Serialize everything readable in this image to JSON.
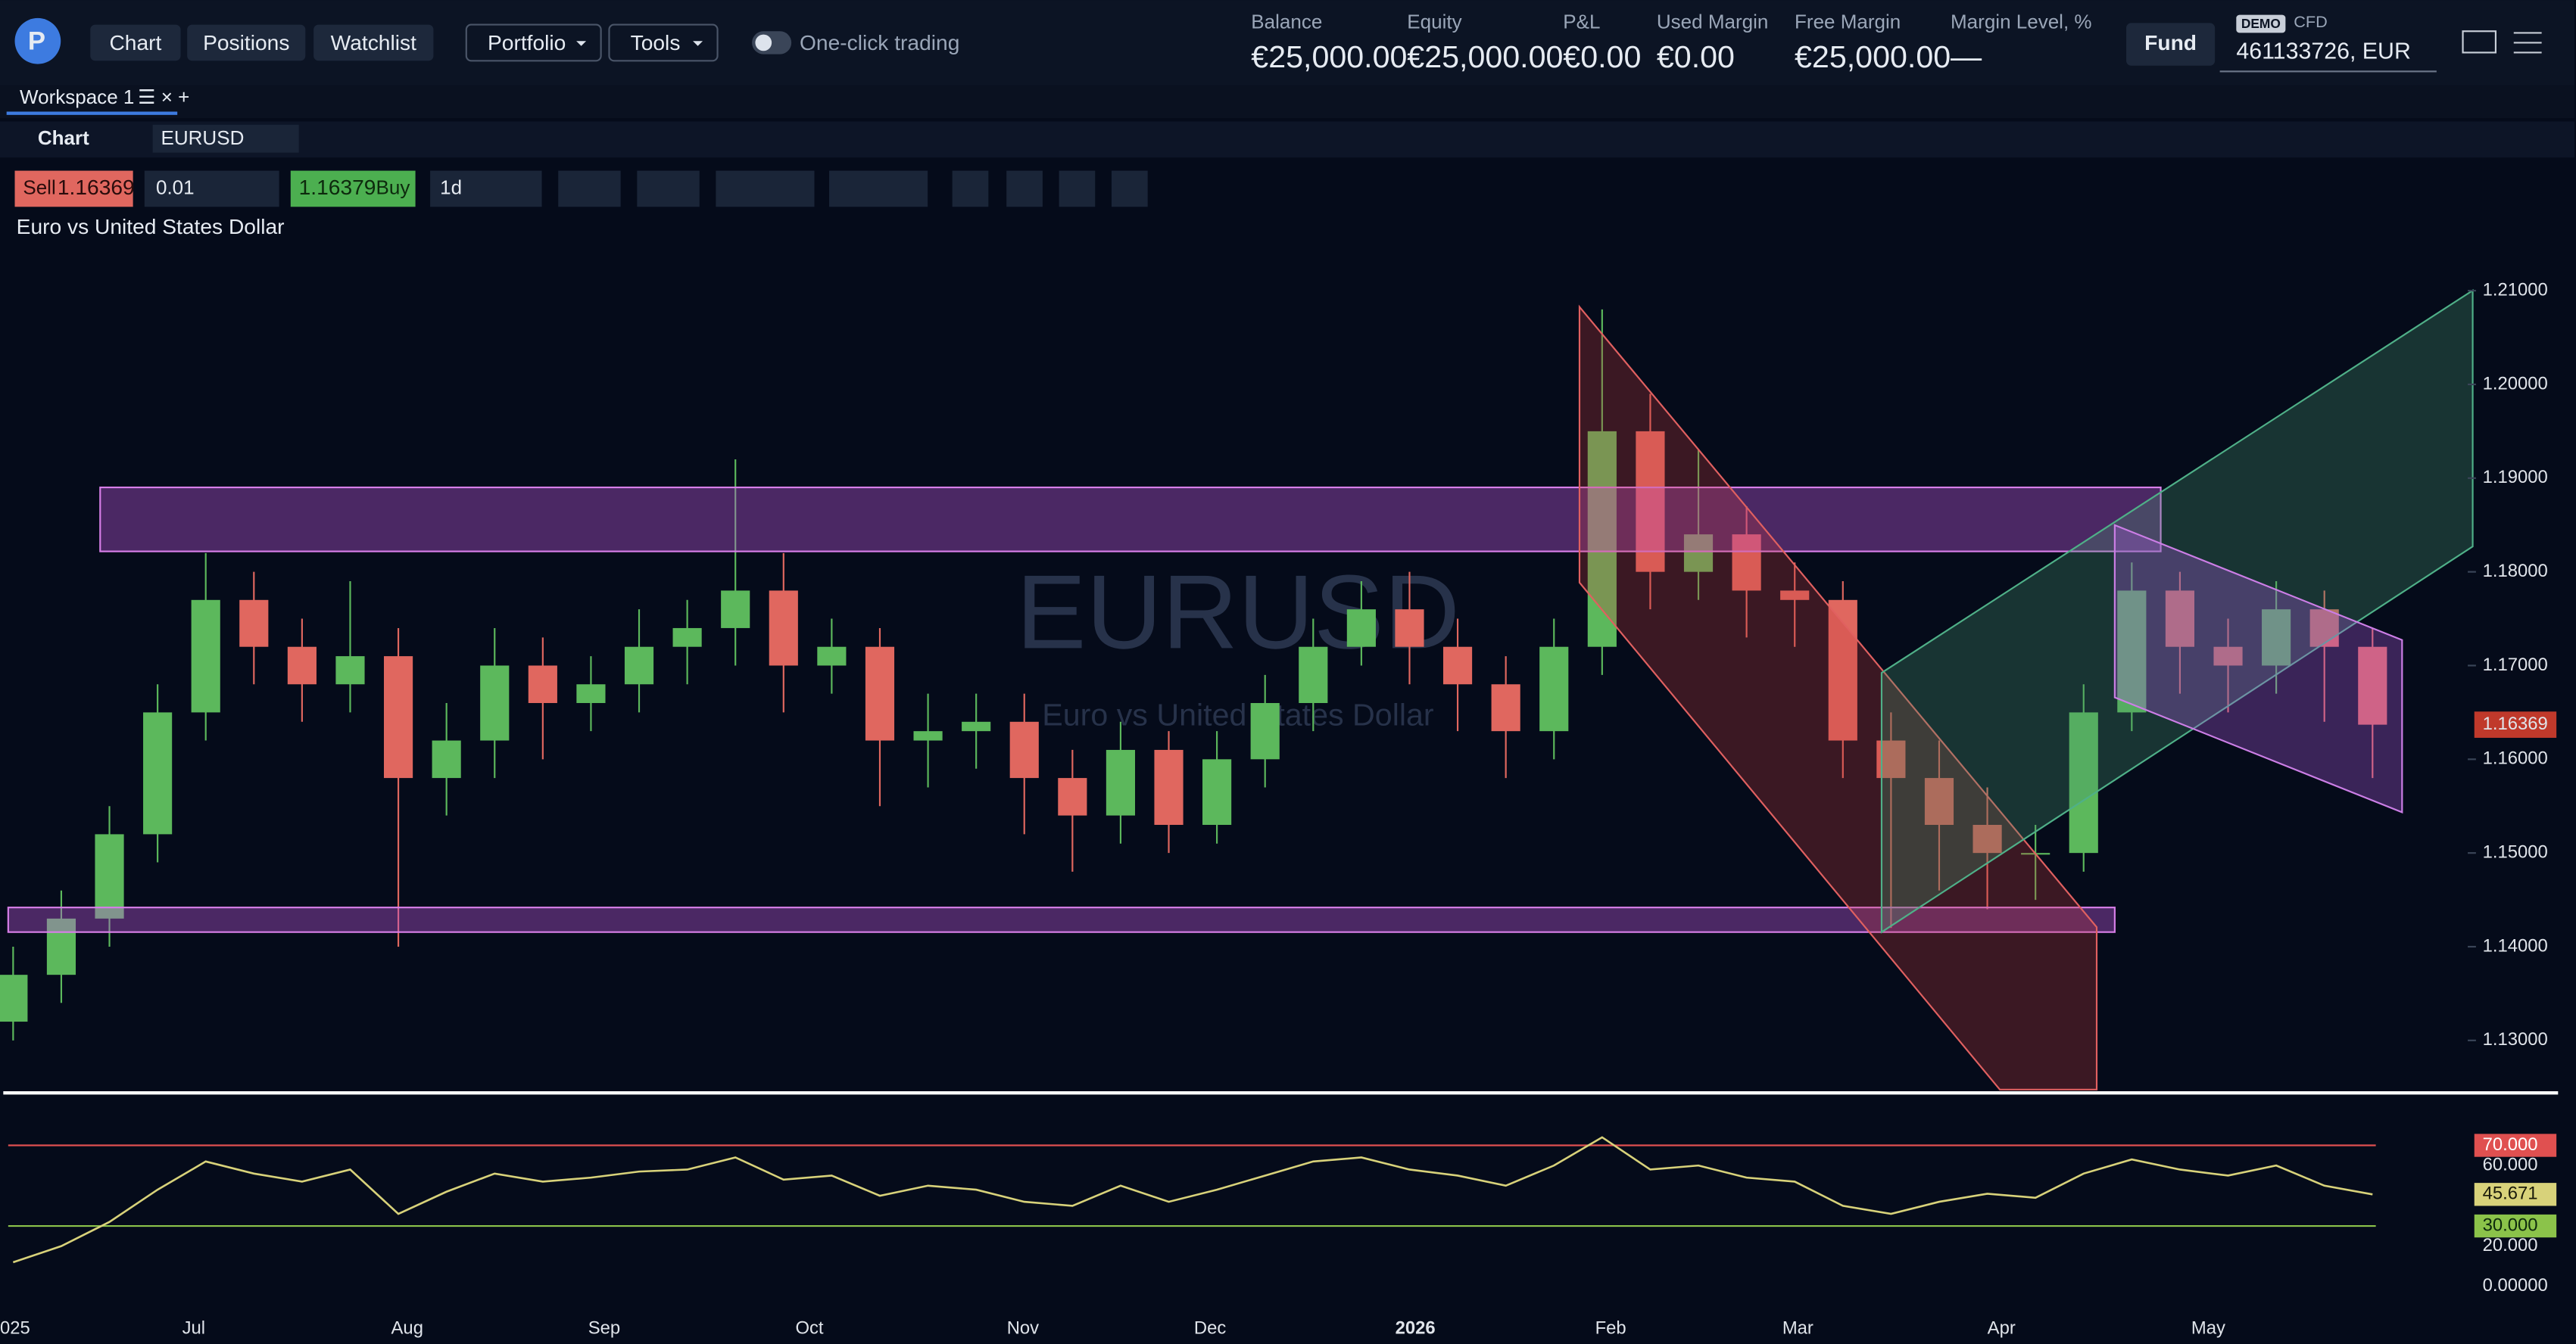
{
  "header": {
    "nav": [
      "Chart",
      "Positions",
      "Watchlist"
    ],
    "menus": [
      "Portfolio",
      "Tools"
    ],
    "one_click": "One-click trading",
    "stats": [
      {
        "label": "Balance",
        "value": "€25,000.00"
      },
      {
        "label": "Equity",
        "value": "€25,000.00"
      },
      {
        "label": "P&L",
        "value": "€0.00"
      },
      {
        "label": "Used Margin",
        "value": "€0.00"
      },
      {
        "label": "Free Margin",
        "value": "€25,000.00"
      },
      {
        "label": "Margin Level, %",
        "value": "—"
      }
    ],
    "fund": "Fund",
    "account_badge": "DEMO",
    "account_type": "CFD",
    "account": "461133726, EUR"
  },
  "tabs": {
    "workspace": "Workspace 1",
    "chart_tab": "Chart",
    "symbol": "EURUSD"
  },
  "toolbar": {
    "sell": "Sell",
    "sell_price": "1.16369",
    "quantity": "0.01",
    "buy_price": "1.16379",
    "buy": "Buy",
    "interval": "1d"
  },
  "chart_data": {
    "type": "candlestick",
    "title": "Euro vs United States Dollar",
    "watermark": "EURUSD",
    "watermark_subtitle": "Euro vs United States Dollar",
    "x_labels": [
      "025",
      "Jul",
      "Aug",
      "Sep",
      "Oct",
      "Nov",
      "Dec",
      "2026",
      "Feb",
      "Mar",
      "Apr",
      "May"
    ],
    "up_color": "#5cb85c",
    "down_color": "#e0675f",
    "candles": {
      "open": [
        1.132,
        1.137,
        1.143,
        1.152,
        1.165,
        1.177,
        1.172,
        1.168,
        1.171,
        1.158,
        1.162,
        1.17,
        1.166,
        1.168,
        1.172,
        1.174,
        1.178,
        1.17,
        1.172,
        1.162,
        1.163,
        1.164,
        1.158,
        1.154,
        1.161,
        1.153,
        1.16,
        1.166,
        1.172,
        1.176,
        1.172,
        1.168,
        1.163,
        1.172,
        1.195,
        1.18,
        1.184,
        1.178,
        1.177,
        1.162,
        1.158,
        1.153,
        1.15,
        1.15,
        1.165,
        1.178,
        1.172,
        1.17,
        1.176,
        1.172
      ],
      "high": [
        1.14,
        1.146,
        1.155,
        1.168,
        1.182,
        1.18,
        1.175,
        1.179,
        1.174,
        1.166,
        1.174,
        1.173,
        1.171,
        1.176,
        1.177,
        1.192,
        1.182,
        1.175,
        1.174,
        1.167,
        1.167,
        1.167,
        1.161,
        1.164,
        1.163,
        1.163,
        1.169,
        1.175,
        1.179,
        1.18,
        1.175,
        1.171,
        1.175,
        1.208,
        1.199,
        1.193,
        1.187,
        1.181,
        1.179,
        1.165,
        1.162,
        1.157,
        1.153,
        1.168,
        1.181,
        1.18,
        1.175,
        1.179,
        1.178,
        1.174
      ],
      "low": [
        1.13,
        1.134,
        1.14,
        1.149,
        1.162,
        1.168,
        1.164,
        1.165,
        1.14,
        1.154,
        1.158,
        1.16,
        1.163,
        1.165,
        1.168,
        1.17,
        1.165,
        1.167,
        1.155,
        1.157,
        1.159,
        1.152,
        1.148,
        1.151,
        1.15,
        1.151,
        1.157,
        1.163,
        1.17,
        1.168,
        1.163,
        1.158,
        1.16,
        1.169,
        1.176,
        1.177,
        1.173,
        1.172,
        1.158,
        1.142,
        1.146,
        1.144,
        1.145,
        1.148,
        1.163,
        1.167,
        1.165,
        1.167,
        1.164,
        1.158
      ],
      "close": [
        1.137,
        1.143,
        1.152,
        1.165,
        1.177,
        1.172,
        1.168,
        1.171,
        1.158,
        1.162,
        1.17,
        1.166,
        1.168,
        1.172,
        1.174,
        1.178,
        1.17,
        1.172,
        1.162,
        1.163,
        1.164,
        1.158,
        1.154,
        1.161,
        1.153,
        1.16,
        1.166,
        1.172,
        1.176,
        1.172,
        1.168,
        1.163,
        1.172,
        1.195,
        1.18,
        1.184,
        1.178,
        1.177,
        1.162,
        1.158,
        1.153,
        1.15,
        1.15,
        1.165,
        1.178,
        1.172,
        1.17,
        1.176,
        1.172,
        1.16369
      ]
    },
    "ylim": [
      1.1244,
      1.2165
    ],
    "yticks": [
      {
        "value": 1.21,
        "label": "1.21000"
      },
      {
        "value": 1.2,
        "label": "1.20000"
      },
      {
        "value": 1.19,
        "label": "1.19000"
      },
      {
        "value": 1.18,
        "label": "1.18000"
      },
      {
        "value": 1.17,
        "label": "1.17000"
      },
      {
        "value": 1.16,
        "label": "1.16000"
      },
      {
        "value": 1.15,
        "label": "1.15000"
      },
      {
        "value": 1.14,
        "label": "1.14000"
      },
      {
        "value": 1.13,
        "label": "1.13000"
      }
    ],
    "last_price": {
      "value": 1.16369,
      "label": "1.16369"
    },
    "rsi": {
      "color": "#d8d27a",
      "ylim": [
        -9,
        94.4
      ],
      "values": [
        12,
        20,
        32,
        48,
        62,
        56,
        52,
        58,
        36,
        47,
        56,
        52,
        54,
        57,
        58,
        64,
        53,
        55,
        45,
        50,
        48,
        42,
        40,
        50,
        42,
        48,
        55,
        62,
        64,
        58,
        55,
        50,
        60,
        74,
        58,
        60,
        54,
        52,
        40,
        36,
        42,
        46,
        44,
        56,
        63,
        58,
        55,
        60,
        50,
        45.671
      ],
      "yticks": [
        {
          "value": 60,
          "label": "60.000"
        },
        {
          "value": 20,
          "label": "20.000"
        },
        {
          "value": 0,
          "label": "0.00000"
        }
      ],
      "levels": [
        {
          "value": 70,
          "label": "70.000",
          "color": "#e05050"
        },
        {
          "value": 30,
          "label": "30.000",
          "color": "#8bc34a"
        }
      ],
      "last": {
        "value": 45.671,
        "label": "45.671"
      }
    }
  }
}
